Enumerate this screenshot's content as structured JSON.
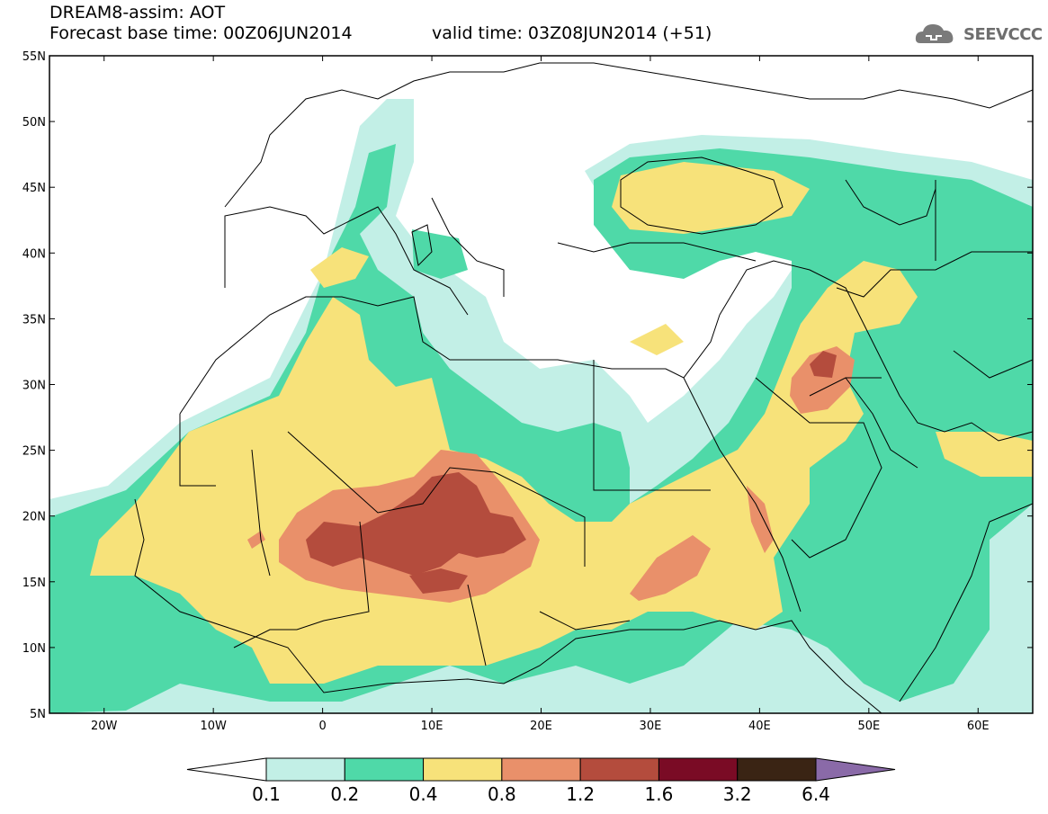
{
  "header": {
    "title": "DREAM8-assim: AOT",
    "base_time": "Forecast base time: 00Z06JUN2014",
    "valid_time": "valid time: 03Z08JUN2014 (+51)",
    "logo_text": "SEEVCCC"
  },
  "map": {
    "lon_range": [
      -25,
      65
    ],
    "lat_range": [
      5,
      55
    ],
    "lat_ticks": [
      {
        "value": 55,
        "label": "55N"
      },
      {
        "value": 50,
        "label": "50N"
      },
      {
        "value": 45,
        "label": "45N"
      },
      {
        "value": 40,
        "label": "40N"
      },
      {
        "value": 35,
        "label": "35N"
      },
      {
        "value": 30,
        "label": "30N"
      },
      {
        "value": 25,
        "label": "25N"
      },
      {
        "value": 20,
        "label": "20N"
      },
      {
        "value": 15,
        "label": "15N"
      },
      {
        "value": 10,
        "label": "10N"
      },
      {
        "value": 5,
        "label": "5N"
      }
    ],
    "lon_ticks": [
      {
        "value": -20,
        "label": "20W"
      },
      {
        "value": -10,
        "label": "10W"
      },
      {
        "value": 0,
        "label": "0"
      },
      {
        "value": 10,
        "label": "10E"
      },
      {
        "value": 20,
        "label": "20E"
      },
      {
        "value": 30,
        "label": "30E"
      },
      {
        "value": 40,
        "label": "40E"
      },
      {
        "value": 50,
        "label": "50E"
      },
      {
        "value": 60,
        "label": "60E"
      }
    ]
  },
  "colorbar": {
    "labels": [
      "0.1",
      "0.2",
      "0.4",
      "0.8",
      "1.2",
      "1.6",
      "3.2",
      "6.4"
    ],
    "colors": [
      "#ffffff",
      "#c2efe6",
      "#4fd9a8",
      "#f7e27a",
      "#e9906a",
      "#b44c3d",
      "#7a0b25",
      "#3a2414",
      "#8a6aa8"
    ]
  },
  "chart_data": {
    "type": "heatmap",
    "title": "DREAM8-assim: AOT",
    "levels": [
      0.1,
      0.2,
      0.4,
      0.8,
      1.2,
      1.6,
      3.2,
      6.4
    ],
    "x_range": [
      -25,
      65
    ],
    "y_range": [
      5,
      55
    ]
  }
}
